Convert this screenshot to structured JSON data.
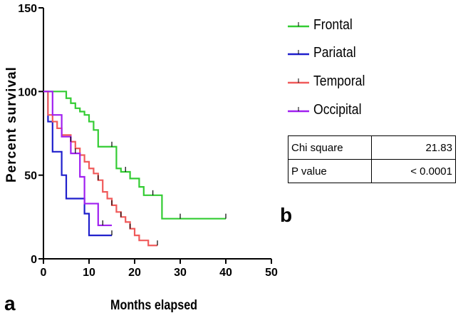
{
  "chart_data": {
    "type": "line",
    "subtype": "kaplan-meier-step",
    "xlabel": "Months elapsed",
    "ylabel": "Percent survival",
    "xlim": [
      0,
      50
    ],
    "ylim": [
      0,
      150
    ],
    "xticks": [
      0,
      10,
      20,
      30,
      40,
      50
    ],
    "yticks": [
      0,
      50,
      100,
      150
    ],
    "series": [
      {
        "name": "Frontal",
        "color": "#33cc33",
        "steps": [
          [
            0,
            100
          ],
          [
            3,
            100
          ],
          [
            5,
            96
          ],
          [
            6,
            93
          ],
          [
            7,
            90
          ],
          [
            8,
            88
          ],
          [
            9,
            86
          ],
          [
            10,
            82
          ],
          [
            11,
            77
          ],
          [
            12,
            67
          ],
          [
            16,
            54
          ],
          [
            17,
            52
          ],
          [
            19,
            48
          ],
          [
            21,
            43
          ],
          [
            22,
            38
          ],
          [
            26,
            24
          ],
          [
            40,
            24
          ]
        ],
        "censor_x": [
          15,
          18,
          24,
          30,
          40
        ]
      },
      {
        "name": "Pariatal",
        "color": "#1f1fcc",
        "steps": [
          [
            0,
            100
          ],
          [
            1,
            82
          ],
          [
            2,
            64
          ],
          [
            4,
            50
          ],
          [
            5,
            36
          ],
          [
            9,
            27
          ],
          [
            10,
            14
          ],
          [
            15,
            14
          ]
        ],
        "censor_x": [
          15
        ]
      },
      {
        "name": "Temporal",
        "color": "#f05a5a",
        "steps": [
          [
            0,
            100
          ],
          [
            1,
            86
          ],
          [
            2,
            82
          ],
          [
            3,
            78
          ],
          [
            4,
            74
          ],
          [
            6,
            70
          ],
          [
            7,
            66
          ],
          [
            8,
            62
          ],
          [
            9,
            58
          ],
          [
            10,
            54
          ],
          [
            11,
            51
          ],
          [
            12,
            47
          ],
          [
            13,
            40
          ],
          [
            14,
            36
          ],
          [
            15,
            32
          ],
          [
            16,
            28
          ],
          [
            17,
            25
          ],
          [
            18,
            22
          ],
          [
            19,
            18
          ],
          [
            20,
            14
          ],
          [
            21,
            11
          ],
          [
            23,
            8
          ],
          [
            25,
            8
          ]
        ],
        "censor_x": [
          6,
          12,
          15,
          17,
          19,
          25
        ]
      },
      {
        "name": "Occipital",
        "color": "#a020f0",
        "steps": [
          [
            0,
            100
          ],
          [
            2,
            86
          ],
          [
            4,
            73
          ],
          [
            6,
            63
          ],
          [
            8,
            49
          ],
          [
            9,
            33
          ],
          [
            12,
            20
          ],
          [
            15,
            20
          ]
        ],
        "censor_x": [
          7,
          13
        ]
      }
    ],
    "legend": {
      "position": "right",
      "entries": [
        "Frontal",
        "Pariatal",
        "Temporal",
        "Occipital"
      ]
    }
  },
  "stats_table": {
    "rows": [
      {
        "label": "Chi square",
        "value": "21.83"
      },
      {
        "label": "P value",
        "value": "< 0.0001"
      }
    ]
  },
  "panel_labels": {
    "a": "a",
    "b": "b"
  }
}
